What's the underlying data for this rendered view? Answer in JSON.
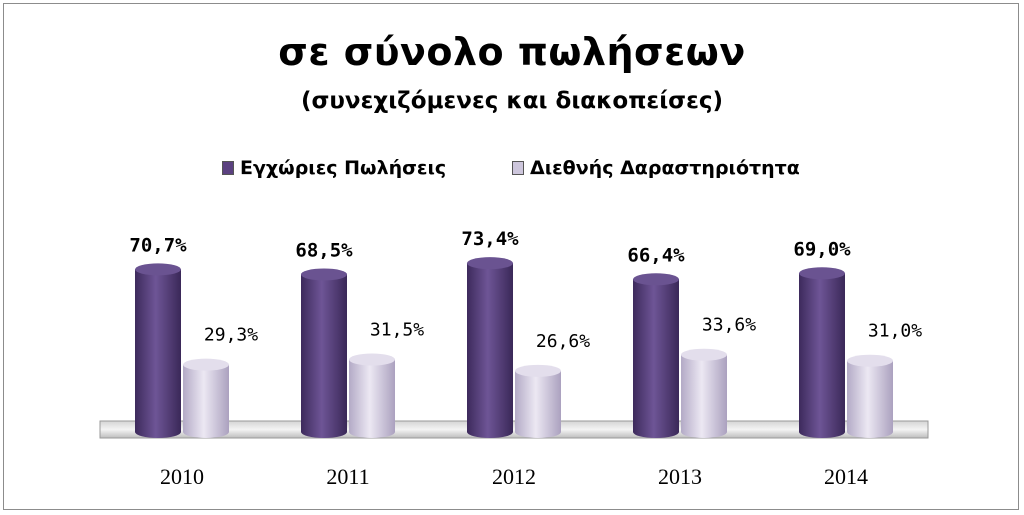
{
  "chart_data": {
    "type": "bar",
    "title": "σε σύνολο πωλήσεων",
    "subtitle": "(συνεχιζόμενες και διακοπείσες)",
    "categories": [
      "2010",
      "2011",
      "2012",
      "2013",
      "2014"
    ],
    "series": [
      {
        "name": "Εγχώριες Πωλήσεις",
        "values": [
          70.7,
          68.5,
          73.4,
          66.4,
          69.0
        ],
        "labels": [
          "70,7%",
          "68,5%",
          "73,4%",
          "66,4%",
          "69,0%"
        ],
        "color": "#5b4180"
      },
      {
        "name": "Διεθνής Δαραστηριότητα",
        "values": [
          29.3,
          31.5,
          26.6,
          33.6,
          31.0
        ],
        "labels": [
          "29,3%",
          "31,5%",
          "26,6%",
          "33,6%",
          "31,0%"
        ],
        "color": "#cdc6dc"
      }
    ],
    "ylim": [
      0,
      100
    ],
    "legend": "top",
    "grid": false
  }
}
